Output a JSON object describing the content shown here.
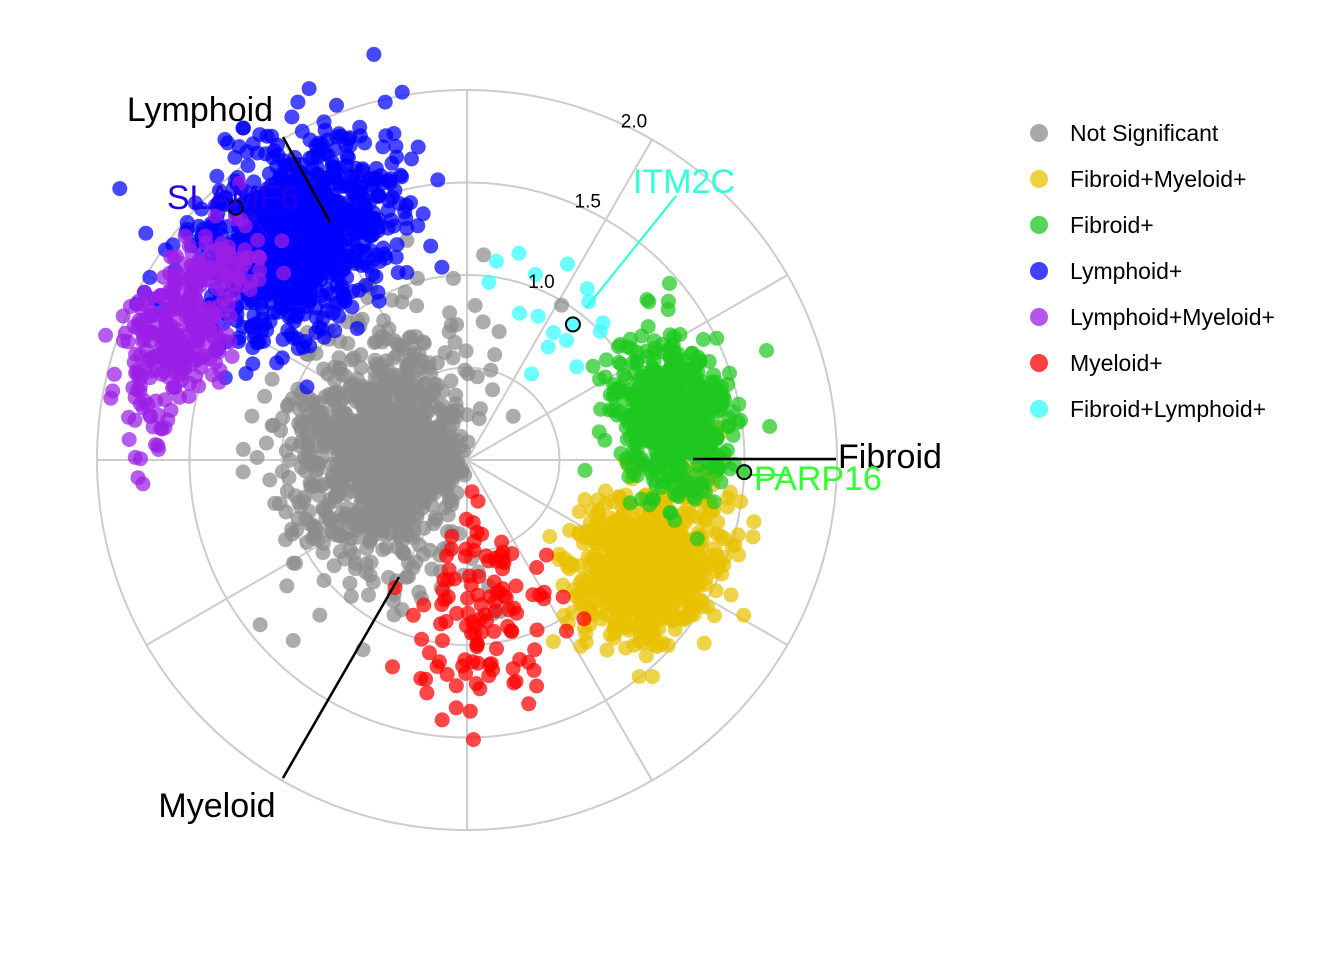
{
  "chart_data": {
    "type": "scatter",
    "coordinate_system": "polar",
    "radial_ticks": [
      1.0,
      1.5,
      2.0
    ],
    "radial_max": 2.0,
    "grid": true,
    "legend_placement": "right",
    "axes": [
      {
        "name": "Fibroid",
        "angle_deg": 0
      },
      {
        "name": "Lymphoid",
        "angle_deg": 120
      },
      {
        "name": "Myeloid",
        "angle_deg": 240
      }
    ],
    "categories": [
      {
        "name": "Not Significant",
        "color": "#8c8c8c",
        "center": [
          0.55,
          175
        ],
        "spread": [
          0.25,
          35
        ],
        "n": 1100
      },
      {
        "name": "Fibroid+Myeloid+",
        "color": "#e8c000",
        "center": [
          1.15,
          330
        ],
        "spread": [
          0.18,
          11
        ],
        "n": 800
      },
      {
        "name": "Fibroid+",
        "color": "#1ec81e",
        "center": [
          1.15,
          12
        ],
        "spread": [
          0.15,
          10
        ],
        "n": 600
      },
      {
        "name": "Lymphoid+",
        "color": "#0000ff",
        "center": [
          1.55,
          128
        ],
        "spread": [
          0.22,
          11
        ],
        "n": 1000
      },
      {
        "name": "Lymphoid+Myeloid+",
        "color": "#9b1ee6",
        "center": [
          1.72,
          155
        ],
        "spread": [
          0.13,
          10
        ],
        "n": 320
      },
      {
        "name": "Myeloid+",
        "color": "#ff0000",
        "center": [
          0.85,
          275
        ],
        "spread": [
          0.28,
          13
        ],
        "n": 120
      },
      {
        "name": "Fibroid+Lymphoid+",
        "color": "#33ffff",
        "center": [
          1.0,
          65
        ],
        "spread": [
          0.18,
          14
        ],
        "n": 16
      }
    ],
    "labeled_points": [
      {
        "gene": "SLAMF6",
        "r": 1.85,
        "angle_deg": 132.5,
        "category": "Lymphoid+",
        "label_color": "#2200ee"
      },
      {
        "gene": "ITM2C",
        "r": 0.93,
        "angle_deg": 52,
        "category": "Fibroid+Lymphoid+",
        "label_color": "#33ffdd"
      },
      {
        "gene": "PARP16",
        "r": 1.5,
        "angle_deg": -2.5,
        "category": "Fibroid+",
        "label_color": "#33ff33"
      }
    ]
  }
}
